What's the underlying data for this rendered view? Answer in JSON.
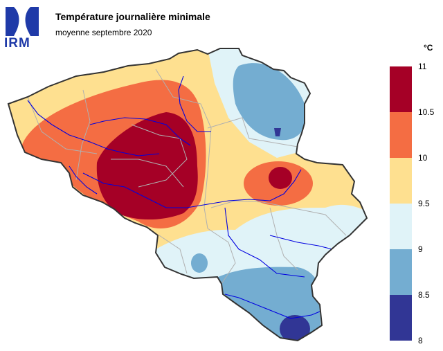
{
  "header": {
    "logo_text": "IRM",
    "title": "Température journalière minimale",
    "subtitle": "moyenne septembre 2020"
  },
  "legend": {
    "unit": "°C",
    "classes": [
      {
        "range": "10.5–11",
        "color": "#a50026"
      },
      {
        "range": "10–10.5",
        "color": "#f46d43"
      },
      {
        "range": "9.5–10",
        "color": "#fee090"
      },
      {
        "range": "9–9.5",
        "color": "#e0f3f8"
      },
      {
        "range": "8.5–9",
        "color": "#74add1"
      },
      {
        "range": "8–8.5",
        "color": "#313695"
      }
    ],
    "ticks": [
      "11",
      "10.5",
      "10",
      "9.5",
      "9",
      "8.5",
      "8"
    ]
  },
  "colors": {
    "border": "#333333",
    "rivers": "#0000e0",
    "provinces": "#b0b0b0",
    "logo": "#1f3aa8"
  }
}
